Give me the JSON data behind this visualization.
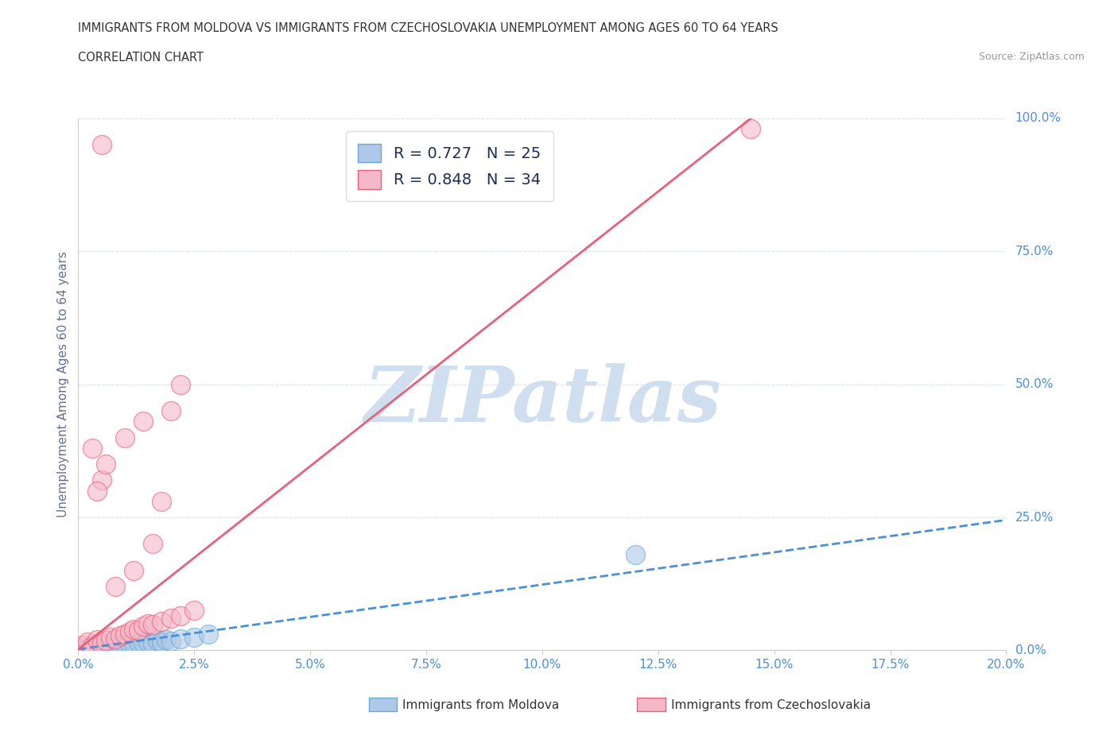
{
  "title_line1": "IMMIGRANTS FROM MOLDOVA VS IMMIGRANTS FROM CZECHOSLOVAKIA UNEMPLOYMENT AMONG AGES 60 TO 64 YEARS",
  "title_line2": "CORRELATION CHART",
  "source": "Source: ZipAtlas.com",
  "ylabel": "Unemployment Among Ages 60 to 64 years",
  "xlim": [
    0.0,
    0.2
  ],
  "ylim": [
    0.0,
    1.0
  ],
  "xtick_labels": [
    "0.0%",
    "2.5%",
    "5.0%",
    "7.5%",
    "10.0%",
    "12.5%",
    "15.0%",
    "17.5%",
    "20.0%"
  ],
  "xtick_values": [
    0.0,
    0.025,
    0.05,
    0.075,
    0.1,
    0.125,
    0.15,
    0.175,
    0.2
  ],
  "ytick_labels": [
    "0.0%",
    "25.0%",
    "50.0%",
    "75.0%",
    "100.0%"
  ],
  "ytick_values": [
    0.0,
    0.25,
    0.5,
    0.75,
    1.0
  ],
  "moldova_color": "#adc8e8",
  "czechoslovakia_color": "#f5b8c8",
  "moldova_edge_color": "#6aaad4",
  "czechoslovakia_edge_color": "#e8607a",
  "moldova_trend_color": "#4a90d9",
  "czechoslovakia_trend_color": "#e8607a",
  "moldova_R": 0.727,
  "moldova_N": 25,
  "czechoslovakia_R": 0.848,
  "czechoslovakia_N": 34,
  "legend_text_color": "#1a2e5a",
  "legend_N_color": "#2a7a3a",
  "watermark_text": "ZIPatlas",
  "watermark_color": "#d0dff0",
  "legend_label_moldova": "Immigrants from Moldova",
  "legend_label_czechoslovakia": "Immigrants from Czechoslovakia",
  "moldova_scatter_x": [
    0.001,
    0.002,
    0.003,
    0.004,
    0.005,
    0.006,
    0.007,
    0.008,
    0.009,
    0.01,
    0.011,
    0.012,
    0.013,
    0.014,
    0.015,
    0.016,
    0.017,
    0.018,
    0.019,
    0.02,
    0.022,
    0.025,
    0.028,
    0.12,
    0.002
  ],
  "moldova_scatter_y": [
    0.003,
    0.005,
    0.002,
    0.008,
    0.004,
    0.006,
    0.01,
    0.007,
    0.012,
    0.009,
    0.013,
    0.011,
    0.015,
    0.014,
    0.016,
    0.012,
    0.018,
    0.015,
    0.02,
    0.017,
    0.022,
    0.025,
    0.03,
    0.18,
    0.0
  ],
  "czechoslovakia_scatter_x": [
    0.001,
    0.002,
    0.003,
    0.004,
    0.005,
    0.006,
    0.007,
    0.008,
    0.009,
    0.01,
    0.011,
    0.012,
    0.013,
    0.014,
    0.015,
    0.016,
    0.018,
    0.02,
    0.022,
    0.025,
    0.008,
    0.012,
    0.016,
    0.005,
    0.003,
    0.018,
    0.01,
    0.014,
    0.022,
    0.02,
    0.006,
    0.004,
    0.145,
    0.005
  ],
  "czechoslovakia_scatter_y": [
    0.01,
    0.015,
    0.008,
    0.02,
    0.012,
    0.018,
    0.025,
    0.022,
    0.028,
    0.03,
    0.035,
    0.04,
    0.038,
    0.045,
    0.05,
    0.048,
    0.055,
    0.06,
    0.065,
    0.075,
    0.12,
    0.15,
    0.2,
    0.32,
    0.38,
    0.28,
    0.4,
    0.43,
    0.5,
    0.45,
    0.35,
    0.3,
    0.98,
    0.95
  ],
  "moldova_trend_x": [
    0.0,
    0.2
  ],
  "moldova_trend_y": [
    0.002,
    0.245
  ],
  "czechoslovakia_trend_x": [
    0.0,
    0.145
  ],
  "czechoslovakia_trend_y": [
    0.002,
    1.0
  ],
  "bg_color": "#ffffff",
  "grid_color": "#dde4f0",
  "grid_style": "--",
  "axis_label_color": "#607090",
  "tick_label_color": "#4a90d9",
  "right_tick_color": "#4a90d9"
}
